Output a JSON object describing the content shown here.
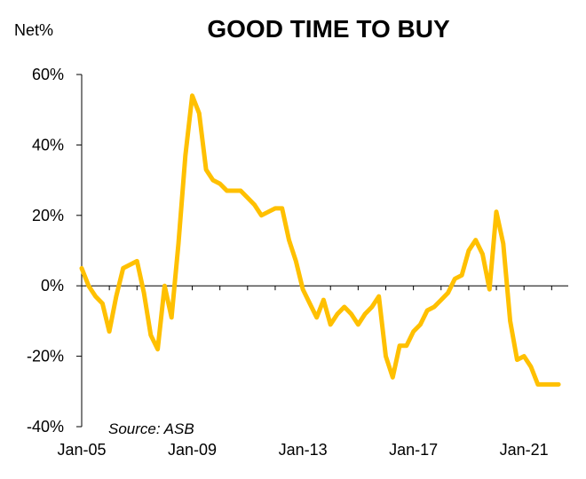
{
  "chart_data": {
    "type": "line",
    "title": "GOOD TIME TO BUY",
    "ylabel": "Net%",
    "source": "Source: ASB",
    "ylim": [
      -40,
      60
    ],
    "y_ticks": [
      "60%",
      "40%",
      "20%",
      "0%",
      "-20%",
      "-40%"
    ],
    "y_tick_values": [
      60,
      40,
      20,
      0,
      -20,
      -40
    ],
    "xlim": [
      2005,
      2022.6
    ],
    "x_ticks": [
      "Jan-05",
      "Jan-09",
      "Jan-13",
      "Jan-17",
      "Jan-21"
    ],
    "x_tick_values": [
      2005,
      2009,
      2013,
      2017,
      2021
    ],
    "line_color": "#FFC000",
    "series": [
      {
        "name": "Good time to buy (Net%)",
        "x": [
          2005.0,
          2005.25,
          2005.5,
          2005.75,
          2006.0,
          2006.25,
          2006.5,
          2006.75,
          2007.0,
          2007.25,
          2007.5,
          2007.75,
          2008.0,
          2008.25,
          2008.5,
          2008.75,
          2009.0,
          2009.25,
          2009.5,
          2009.75,
          2010.0,
          2010.25,
          2010.5,
          2010.75,
          2011.0,
          2011.25,
          2011.5,
          2011.75,
          2012.0,
          2012.25,
          2012.5,
          2012.75,
          2013.0,
          2013.25,
          2013.5,
          2013.75,
          2014.0,
          2014.25,
          2014.5,
          2014.75,
          2015.0,
          2015.25,
          2015.5,
          2015.75,
          2016.0,
          2016.25,
          2016.5,
          2016.75,
          2017.0,
          2017.25,
          2017.5,
          2017.75,
          2018.0,
          2018.25,
          2018.5,
          2018.75,
          2019.0,
          2019.25,
          2019.5,
          2019.75,
          2020.0,
          2020.25,
          2020.5,
          2020.75,
          2021.0,
          2021.25,
          2021.5,
          2021.75,
          2022.0,
          2022.25
        ],
        "values": [
          5,
          0,
          -3,
          -5,
          -13,
          -3,
          5,
          6,
          7,
          -2,
          -14,
          -18,
          0,
          -9,
          12,
          37,
          54,
          49,
          33,
          30,
          29,
          27,
          27,
          27,
          25,
          23,
          20,
          21,
          22,
          22,
          13,
          7,
          -1,
          -5,
          -9,
          -4,
          -11,
          -8,
          -6,
          -8,
          -11,
          -8,
          -6,
          -3,
          -20,
          -26,
          -17,
          -17,
          -13,
          -11,
          -7,
          -6,
          -4,
          -2,
          2,
          3,
          10,
          13,
          9,
          -1,
          21,
          12,
          -10,
          -21,
          -20,
          -23,
          -28,
          -28,
          -28,
          -28
        ]
      }
    ]
  }
}
